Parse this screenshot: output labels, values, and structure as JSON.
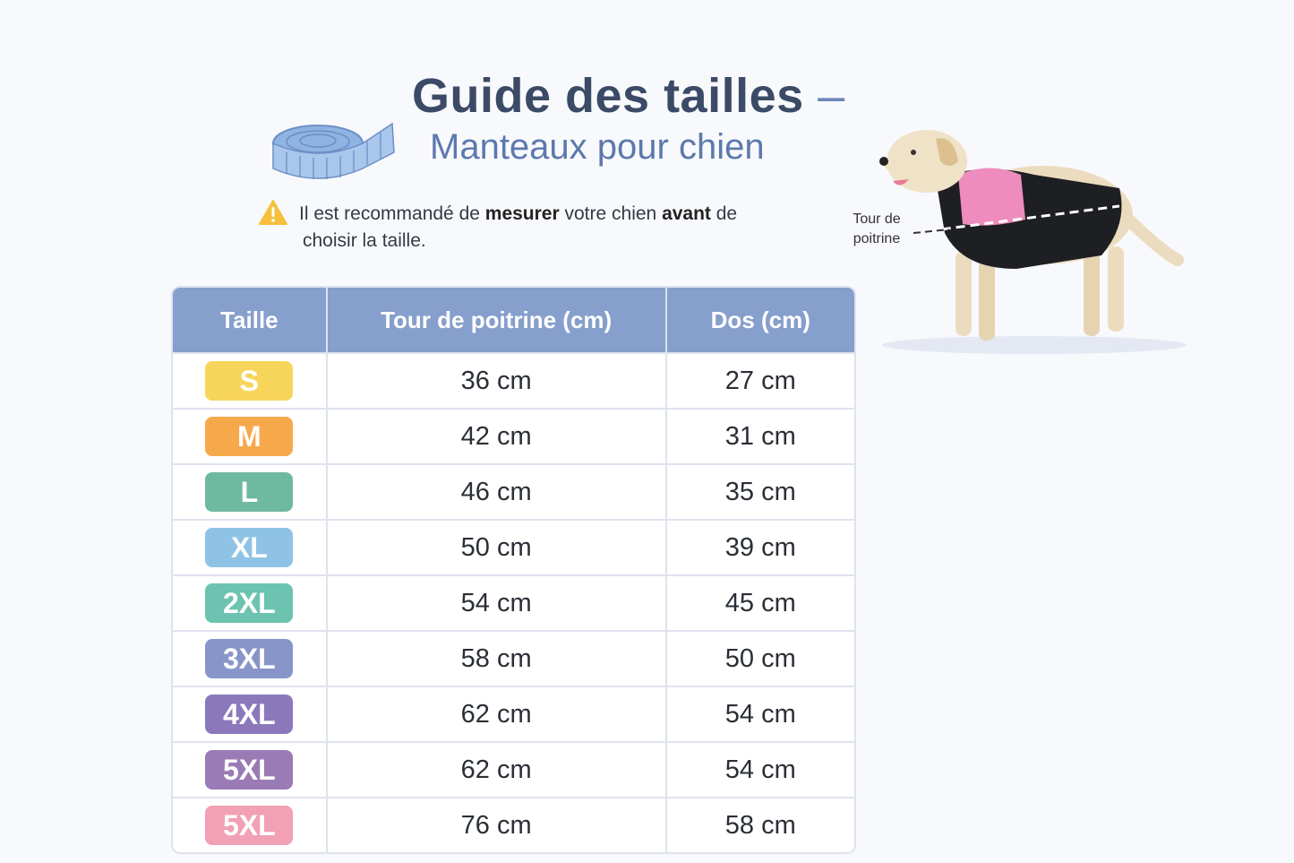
{
  "header": {
    "title": "Guide des tailles",
    "title_dash": "–",
    "subtitle": "Manteaux pour chien"
  },
  "notice": {
    "icon": "warning-icon",
    "part1": "Il est recommandé de ",
    "bold1": "mesurer",
    "part2": " votre chien ",
    "bold2": "avant",
    "part3": " de",
    "line2": "choisir la taille."
  },
  "illustration": {
    "tape_icon": "measuring-tape-icon",
    "dog_label_line1": "Tour de",
    "dog_label_line2": "poitrine"
  },
  "table": {
    "headers": [
      "Taille",
      "Tour de poitrine (cm)",
      "Dos (cm)"
    ],
    "rows": [
      {
        "size": "S",
        "color": "#f7d55a",
        "chest": "36 cm",
        "back": "27 cm"
      },
      {
        "size": "M",
        "color": "#f6a94b",
        "chest": "42 cm",
        "back": "31 cm"
      },
      {
        "size": "L",
        "color": "#6fb9a0",
        "chest": "46 cm",
        "back": "35 cm"
      },
      {
        "size": "XL",
        "color": "#8ec3e6",
        "chest": "50 cm",
        "back": "39 cm"
      },
      {
        "size": "2XL",
        "color": "#6cc4b0",
        "chest": "54 cm",
        "back": "45 cm"
      },
      {
        "size": "3XL",
        "color": "#8795c9",
        "chest": "58 cm",
        "back": "50 cm"
      },
      {
        "size": "4XL",
        "color": "#8a78bb",
        "chest": "62 cm",
        "back": "54 cm"
      },
      {
        "size": "5XL",
        "color": "#9a7bb5",
        "chest": "62 cm",
        "back": "54 cm"
      },
      {
        "size": "5XL",
        "color": "#f1a0b5",
        "chest": "76 cm",
        "back": "58 cm"
      }
    ]
  }
}
